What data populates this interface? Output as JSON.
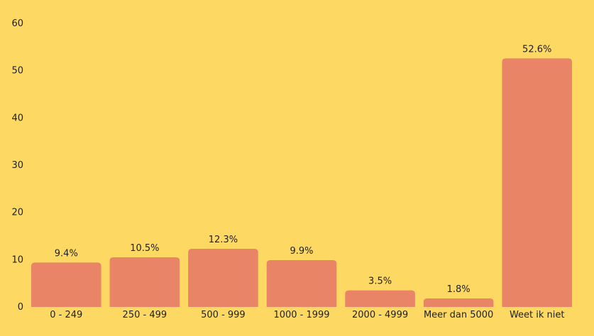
{
  "chart_data": {
    "type": "bar",
    "categories": [
      "0 - 249",
      "250 - 499",
      "500 - 999",
      "1000 - 1999",
      "2000 - 4999",
      "Meer dan 5000",
      "Weet ik niet"
    ],
    "values": [
      9.4,
      10.5,
      12.3,
      9.9,
      3.5,
      1.8,
      52.6
    ],
    "data_labels": [
      "9.4%",
      "10.5%",
      "12.3%",
      "9.9%",
      "3.5%",
      "1.8%",
      "52.6%"
    ],
    "y_ticks": [
      0,
      10,
      20,
      30,
      40,
      50,
      60
    ],
    "ylim": [
      0,
      60
    ],
    "grid": false,
    "legend": "none",
    "title": "",
    "xlabel": "",
    "ylabel": "",
    "colors": {
      "background": "#FDD963",
      "bar": "#E98566",
      "text": "#1f1f1f"
    }
  }
}
